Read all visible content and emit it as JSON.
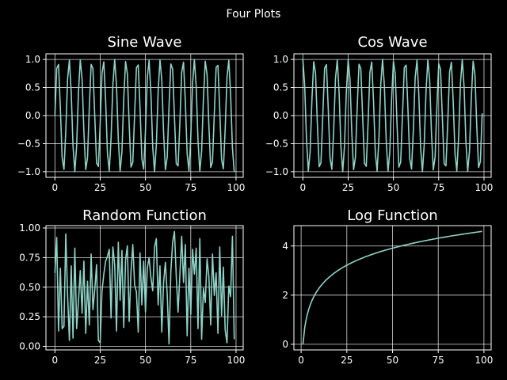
{
  "figure": {
    "suptitle": "Four Plots",
    "background": "#000000",
    "line_color": "#8dd3c7"
  },
  "chart_data": [
    {
      "type": "line",
      "title": "Sine Wave",
      "xlabel": "",
      "ylabel": "",
      "xlim": [
        -4.95,
        103.95
      ],
      "ylim": [
        -1.1,
        1.1
      ],
      "x_ticks": [
        0,
        25,
        50,
        75,
        100
      ],
      "y_ticks": [
        -1.0,
        -0.5,
        0.0,
        0.5,
        1.0
      ],
      "x_tick_labels": [
        "0",
        "25",
        "50",
        "75",
        "100"
      ],
      "y_tick_labels": [
        "−1.0",
        "−0.5",
        "0.0",
        "0.5",
        "1.0"
      ],
      "grid": true,
      "function": "sin(x)",
      "x_start": 0,
      "x_end": 99,
      "n_points": 100
    },
    {
      "type": "line",
      "title": "Cos Wave",
      "xlabel": "",
      "ylabel": "",
      "xlim": [
        -4.95,
        103.95
      ],
      "ylim": [
        -1.1,
        1.1
      ],
      "x_ticks": [
        0,
        25,
        50,
        75,
        100
      ],
      "y_ticks": [
        -1.0,
        -0.5,
        0.0,
        0.5,
        1.0
      ],
      "x_tick_labels": [
        "0",
        "25",
        "50",
        "75",
        "100"
      ],
      "y_tick_labels": [
        "−1.0",
        "−0.5",
        "0.0",
        "0.5",
        "1.0"
      ],
      "grid": true,
      "function": "cos(x)",
      "x_start": 0,
      "x_end": 99,
      "n_points": 100
    },
    {
      "type": "line",
      "title": "Random Function",
      "xlabel": "",
      "ylabel": "",
      "xlim": [
        -4.95,
        103.95
      ],
      "ylim": [
        -0.03,
        1.02
      ],
      "x_ticks": [
        0,
        25,
        50,
        75,
        100
      ],
      "y_ticks": [
        0.0,
        0.25,
        0.5,
        0.75,
        1.0
      ],
      "x_tick_labels": [
        "0",
        "25",
        "50",
        "75",
        "100"
      ],
      "y_tick_labels": [
        "0.00",
        "0.25",
        "0.50",
        "0.75",
        "1.00"
      ],
      "grid": true,
      "x": [
        0,
        1,
        2,
        3,
        4,
        5,
        6,
        7,
        8,
        9,
        10,
        11,
        12,
        13,
        14,
        15,
        16,
        17,
        18,
        19,
        20,
        21,
        22,
        23,
        24,
        25,
        26,
        27,
        28,
        29,
        30,
        31,
        32,
        33,
        34,
        35,
        36,
        37,
        38,
        39,
        40,
        41,
        42,
        43,
        44,
        45,
        46,
        47,
        48,
        49,
        50,
        51,
        52,
        53,
        54,
        55,
        56,
        57,
        58,
        59,
        60,
        61,
        62,
        63,
        64,
        65,
        66,
        67,
        68,
        69,
        70,
        71,
        72,
        73,
        74,
        75,
        76,
        77,
        78,
        79,
        80,
        81,
        82,
        83,
        84,
        85,
        86,
        87,
        88,
        89,
        90,
        91,
        92,
        93,
        94,
        95,
        96,
        97,
        98,
        99
      ],
      "y": [
        0.62,
        0.92,
        0.13,
        0.66,
        0.15,
        0.17,
        0.95,
        0.43,
        0.05,
        0.68,
        0.07,
        0.83,
        0.15,
        0.38,
        0.64,
        0.28,
        0.72,
        0.11,
        0.55,
        0.18,
        0.78,
        0.31,
        0.48,
        0.69,
        0.05,
        0.03,
        0.47,
        0.61,
        0.72,
        0.76,
        0.82,
        0.24,
        0.84,
        0.69,
        0.13,
        0.88,
        0.39,
        0.81,
        0.16,
        0.73,
        0.85,
        0.21,
        0.63,
        0.86,
        0.52,
        0.46,
        0.12,
        0.79,
        0.35,
        0.72,
        0.29,
        0.66,
        0.75,
        0.58,
        0.47,
        0.84,
        0.91,
        0.35,
        0.68,
        0.12,
        0.54,
        0.71,
        0.44,
        0.02,
        0.63,
        0.88,
        0.97,
        0.59,
        0.29,
        0.61,
        0.93,
        0.54,
        0.86,
        0.09,
        0.66,
        0.27,
        0.82,
        0.61,
        0.83,
        0.15,
        0.91,
        0.06,
        0.49,
        0.37,
        0.74,
        0.59,
        0.18,
        0.78,
        0.43,
        0.62,
        0.11,
        0.84,
        0.26,
        0.67,
        0.14,
        0.03,
        0.51,
        0.42,
        0.93,
        0.06
      ]
    },
    {
      "type": "line",
      "title": "Log Function",
      "xlabel": "",
      "ylabel": "",
      "xlim": [
        -3.95,
        103.95
      ],
      "ylim": [
        -0.23,
        4.83
      ],
      "x_ticks": [
        0,
        25,
        50,
        75,
        100
      ],
      "y_ticks": [
        0,
        2,
        4
      ],
      "x_tick_labels": [
        "0",
        "25",
        "50",
        "75",
        "100"
      ],
      "y_tick_labels": [
        "0",
        "2",
        "4"
      ],
      "grid": true,
      "function": "ln(x)",
      "x_start": 1,
      "x_end": 99,
      "n_points": 99
    }
  ]
}
